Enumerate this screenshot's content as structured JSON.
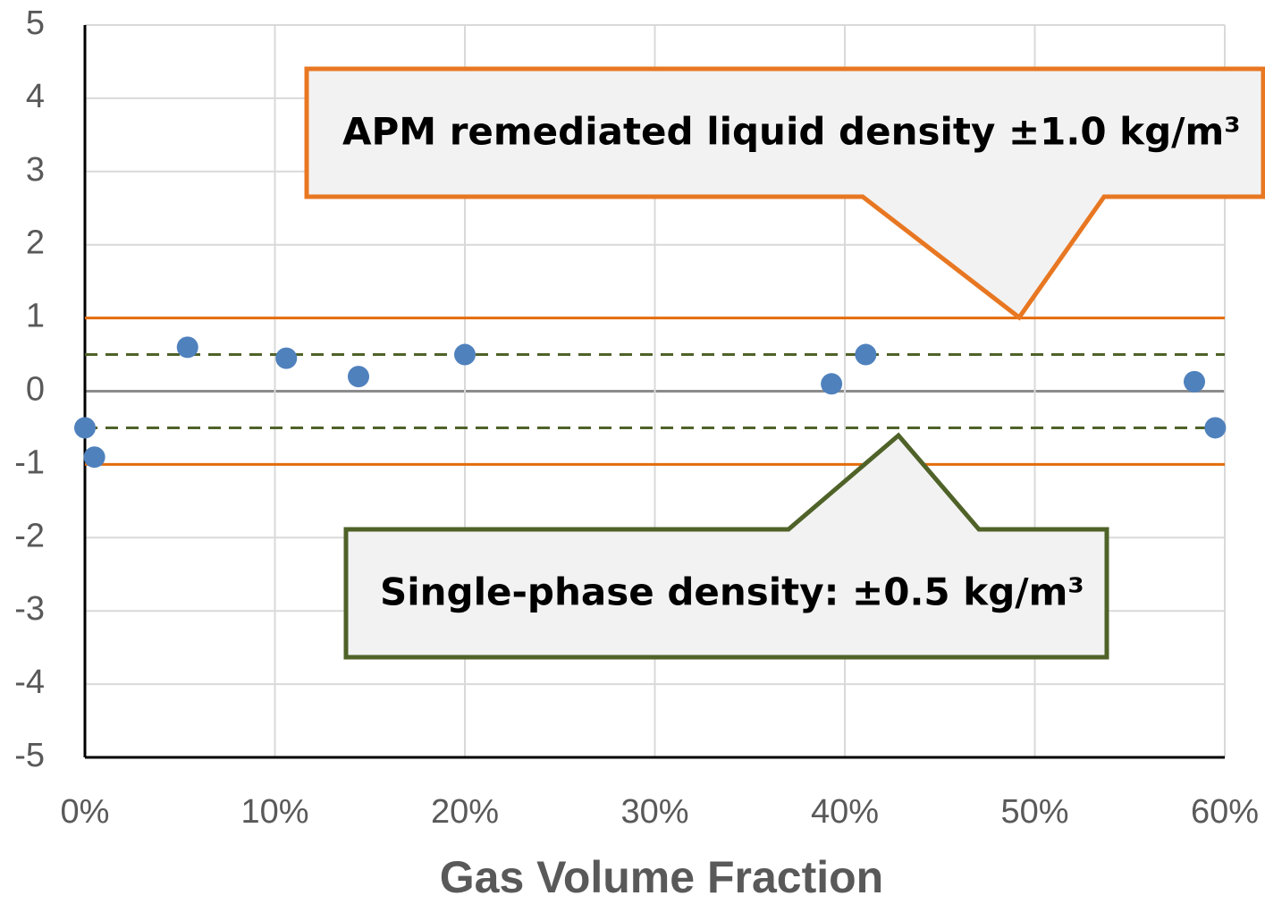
{
  "chart_data": {
    "type": "scatter",
    "x_label": "Gas Volume Fraction",
    "x": [
      0,
      0.5,
      5.4,
      10.6,
      14.4,
      20,
      39.3,
      41.1,
      58.4,
      59.5
    ],
    "values": [
      -0.5,
      -0.9,
      0.6,
      0.45,
      0.2,
      0.5,
      0.1,
      0.5,
      0.13,
      -0.5
    ],
    "color": "#4f81bd",
    "xlim": [
      0,
      60
    ],
    "xticks": [
      {
        "value": 0,
        "label": "0%"
      },
      {
        "value": 10,
        "label": "10%"
      },
      {
        "value": 20,
        "label": "20%"
      },
      {
        "value": 30,
        "label": "30%"
      },
      {
        "value": 40,
        "label": "40%"
      },
      {
        "value": 50,
        "label": "50%"
      },
      {
        "value": 60,
        "label": "60%"
      }
    ],
    "ylim": [
      -5,
      5
    ],
    "yticks": [
      -5,
      -4,
      -3,
      -2,
      -1,
      0,
      1,
      2,
      3,
      4,
      5
    ],
    "grid": true,
    "reference_lines": [
      {
        "value": 1,
        "color": "#e46c0a",
        "style": "solid"
      },
      {
        "value": -1,
        "color": "#e46c0a",
        "style": "solid"
      },
      {
        "value": 0.5,
        "color": "#4f6228",
        "style": "dashed"
      },
      {
        "value": -0.5,
        "color": "#4f6228",
        "style": "dashed"
      }
    ],
    "annotations": [
      "APM remediated liquid density ±1.0 kg/m³",
      "Single-phase density: ±0.5 kg/m³"
    ]
  }
}
